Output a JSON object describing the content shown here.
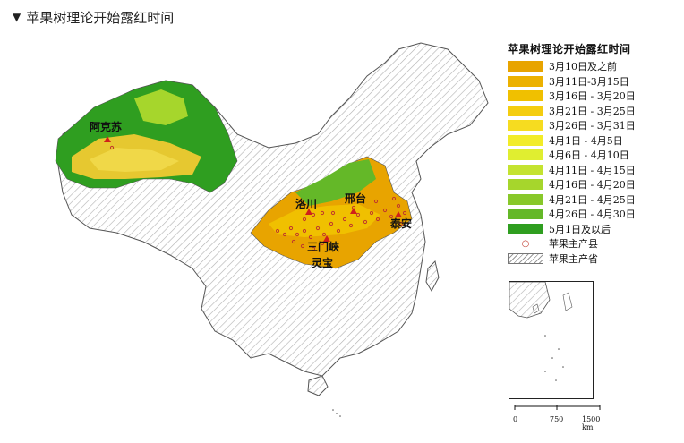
{
  "header": {
    "caret": "▼",
    "title": "苹果树理论开始露红时间"
  },
  "legend": {
    "title": "苹果树理论开始露红时间",
    "items": [
      {
        "label": "3月10日及之前",
        "color": "#e8a400"
      },
      {
        "label": "3月11日-3月15日",
        "color": "#ecb100"
      },
      {
        "label": "3月16日 - 3月20日",
        "color": "#f0c000"
      },
      {
        "label": "3月21日 - 3月25日",
        "color": "#f4cd10"
      },
      {
        "label": "3月26日 - 3月31日",
        "color": "#f6dc20"
      },
      {
        "label": "4月1日 - 4月5日",
        "color": "#f2ec28"
      },
      {
        "label": "4月6日 - 4月10日",
        "color": "#e0ee30"
      },
      {
        "label": "4月11日 - 4月15日",
        "color": "#c4e330"
      },
      {
        "label": "4月16日 - 4月20日",
        "color": "#a6d62c"
      },
      {
        "label": "4月21日 - 4月25日",
        "color": "#88c82a"
      },
      {
        "label": "4月26日 - 4月30日",
        "color": "#64b828"
      },
      {
        "label": "5月1日及以后",
        "color": "#2f9e20"
      }
    ],
    "county_label": "苹果主产县",
    "province_label": "苹果主产省"
  },
  "cities": [
    "阿克苏",
    "洛川",
    "邢台",
    "泰安",
    "三门峡",
    "灵宝"
  ],
  "scale": {
    "zero": "0",
    "mid": "750",
    "end": "1500 km"
  }
}
